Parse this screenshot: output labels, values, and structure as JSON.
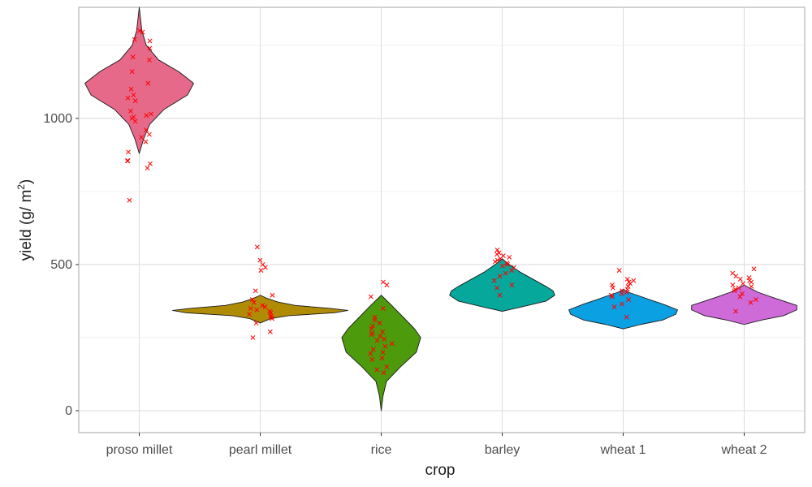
{
  "chart_data": {
    "type": "violin",
    "xlabel": "crop",
    "ylabel_parts": [
      "yield (g/ m",
      "2",
      ")"
    ],
    "ylim": [
      -75,
      1380
    ],
    "yticks": [
      0,
      500,
      1000
    ],
    "ytick_labels": [
      "0",
      "500",
      "1000"
    ],
    "grid": true,
    "point_color": "#ff0000",
    "outline_color": "#1a1a1a",
    "categories": [
      "proso millet",
      "pearl millet",
      "rice",
      "barley",
      "wheat 1",
      "wheat 2"
    ],
    "series": [
      {
        "category": "proso millet",
        "fill": "#e7698a",
        "min": 880,
        "max": 1380,
        "density": [
          [
            880,
            0.0
          ],
          [
            930,
            0.05
          ],
          [
            980,
            0.12
          ],
          [
            1030,
            0.28
          ],
          [
            1080,
            0.55
          ],
          [
            1120,
            0.62
          ],
          [
            1160,
            0.45
          ],
          [
            1200,
            0.22
          ],
          [
            1250,
            0.08
          ],
          [
            1300,
            0.03
          ],
          [
            1380,
            0.0
          ]
        ],
        "points": [
          720,
          830,
          845,
          855,
          855,
          885,
          920,
          935,
          945,
          960,
          990,
          1000,
          1005,
          1010,
          1015,
          1025,
          1060,
          1070,
          1080,
          1100,
          1120,
          1160,
          1200,
          1210,
          1240,
          1265,
          1270,
          1295,
          1300
        ]
      },
      {
        "category": "pearl millet",
        "fill": "#b08c06",
        "min": 300,
        "max": 395,
        "density": [
          [
            300,
            0.0
          ],
          [
            315,
            0.12
          ],
          [
            325,
            0.32
          ],
          [
            335,
            0.85
          ],
          [
            343,
            1.0
          ],
          [
            350,
            0.8
          ],
          [
            360,
            0.4
          ],
          [
            372,
            0.2
          ],
          [
            385,
            0.07
          ],
          [
            395,
            0.0
          ]
        ],
        "points": [
          250,
          270,
          300,
          315,
          320,
          325,
          330,
          335,
          340,
          345,
          350,
          355,
          360,
          370,
          380,
          395,
          410,
          480,
          490,
          500,
          515,
          560
        ]
      },
      {
        "category": "rice",
        "fill": "#4e9a0d",
        "min": 0,
        "max": 395,
        "density": [
          [
            0,
            0.0
          ],
          [
            50,
            0.02
          ],
          [
            100,
            0.06
          ],
          [
            150,
            0.22
          ],
          [
            200,
            0.4
          ],
          [
            250,
            0.45
          ],
          [
            280,
            0.38
          ],
          [
            320,
            0.25
          ],
          [
            360,
            0.12
          ],
          [
            395,
            0.0
          ]
        ],
        "points": [
          130,
          140,
          150,
          175,
          180,
          195,
          200,
          210,
          220,
          230,
          240,
          245,
          255,
          260,
          265,
          270,
          280,
          290,
          300,
          310,
          320,
          350,
          390,
          430,
          440
        ]
      },
      {
        "category": "barley",
        "fill": "#05a89b",
        "min": 340,
        "max": 520,
        "density": [
          [
            340,
            0.0
          ],
          [
            355,
            0.22
          ],
          [
            375,
            0.5
          ],
          [
            395,
            0.6
          ],
          [
            410,
            0.58
          ],
          [
            425,
            0.5
          ],
          [
            450,
            0.35
          ],
          [
            475,
            0.2
          ],
          [
            500,
            0.08
          ],
          [
            520,
            0.0
          ]
        ],
        "points": [
          395,
          420,
          430,
          445,
          460,
          470,
          480,
          490,
          495,
          500,
          505,
          510,
          515,
          520,
          525,
          530,
          535,
          540,
          550
        ]
      },
      {
        "category": "wheat 1",
        "fill": "#0ba0e2",
        "min": 280,
        "max": 415,
        "density": [
          [
            280,
            0.0
          ],
          [
            295,
            0.2
          ],
          [
            310,
            0.45
          ],
          [
            330,
            0.6
          ],
          [
            345,
            0.62
          ],
          [
            365,
            0.45
          ],
          [
            380,
            0.3
          ],
          [
            395,
            0.16
          ],
          [
            405,
            0.06
          ],
          [
            415,
            0.0
          ]
        ],
        "points": [
          320,
          355,
          365,
          380,
          390,
          395,
          400,
          405,
          410,
          415,
          420,
          425,
          430,
          435,
          440,
          445,
          450,
          480
        ]
      },
      {
        "category": "wheat 2",
        "fill": "#cf6bd9",
        "min": 295,
        "max": 430,
        "density": [
          [
            295,
            0.0
          ],
          [
            310,
            0.2
          ],
          [
            325,
            0.45
          ],
          [
            345,
            0.6
          ],
          [
            360,
            0.6
          ],
          [
            375,
            0.45
          ],
          [
            390,
            0.3
          ],
          [
            405,
            0.16
          ],
          [
            420,
            0.06
          ],
          [
            430,
            0.0
          ]
        ],
        "points": [
          340,
          370,
          380,
          390,
          400,
          410,
          415,
          420,
          425,
          430,
          435,
          440,
          445,
          450,
          455,
          460,
          470,
          485
        ]
      }
    ]
  }
}
